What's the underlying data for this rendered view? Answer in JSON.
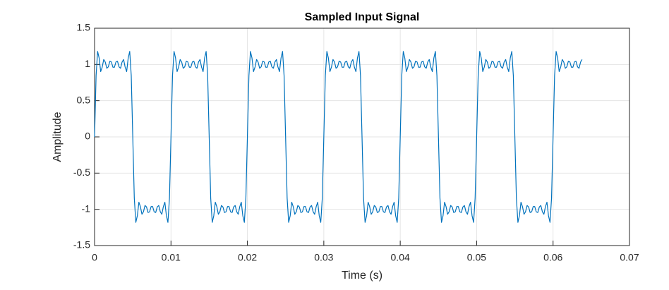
{
  "chart_data": {
    "type": "line",
    "title": "Sampled Input Signal",
    "x_label": "Time (s)",
    "y_label": "Amplitude",
    "color": "#0072bd",
    "grid": true,
    "xlim": [
      0,
      0.07
    ],
    "xticks": [
      0,
      0.01,
      0.02,
      0.03,
      0.04,
      0.05,
      0.06,
      0.07
    ],
    "ylim": [
      -1.5,
      1.5
    ],
    "yticks": [
      -1.5,
      -1,
      -0.5,
      0,
      0.5,
      1,
      1.5
    ],
    "x": [
      0,
      0.0002,
      0.0004,
      0.0006,
      0.0008,
      0.001,
      0.0012,
      0.0014,
      0.0016,
      0.0018,
      0.002,
      0.0022,
      0.0024,
      0.0026,
      0.0028,
      0.003,
      0.0032,
      0.0034,
      0.0036,
      0.0038,
      0.004,
      0.0042,
      0.0044,
      0.0046,
      0.0048,
      0.005,
      0.0052,
      0.0054,
      0.0056,
      0.0058,
      0.006,
      0.0062,
      0.0064,
      0.0066,
      0.0068,
      0.007,
      0.0072,
      0.0074,
      0.0076,
      0.0078,
      0.008,
      0.0082,
      0.0084,
      0.0086,
      0.0088,
      0.009,
      0.0092,
      0.0094,
      0.0096,
      0.0098,
      0.01,
      0.0102,
      0.0104,
      0.0106,
      0.0108,
      0.011,
      0.0112,
      0.0114,
      0.0116,
      0.0118,
      0.012,
      0.0122,
      0.0124,
      0.0126,
      0.0128,
      0.013,
      0.0132,
      0.0134,
      0.0136,
      0.0138,
      0.014,
      0.0142,
      0.0144,
      0.0146,
      0.0148,
      0.015,
      0.0152,
      0.0154,
      0.0156,
      0.0158,
      0.016,
      0.0162,
      0.0164,
      0.0166,
      0.0168,
      0.017,
      0.0172,
      0.0174,
      0.0176,
      0.0178,
      0.018,
      0.0182,
      0.0184,
      0.0186,
      0.0188,
      0.019,
      0.0192,
      0.0194,
      0.0196,
      0.0198,
      0.02,
      0.0202,
      0.0204,
      0.0206,
      0.0208,
      0.021,
      0.0212,
      0.0214,
      0.0216,
      0.0218,
      0.022,
      0.0222,
      0.0224,
      0.0226,
      0.0228,
      0.023,
      0.0232,
      0.0234,
      0.0236,
      0.0238,
      0.024,
      0.0242,
      0.0244,
      0.0246,
      0.0248,
      0.025,
      0.0252,
      0.0254,
      0.0256,
      0.0258,
      0.026,
      0.0262,
      0.0264,
      0.0266,
      0.0268,
      0.027,
      0.0272,
      0.0274,
      0.0276,
      0.0278,
      0.028,
      0.0282,
      0.0284,
      0.0286,
      0.0288,
      0.029,
      0.0292,
      0.0294,
      0.0296,
      0.0298,
      0.03,
      0.0302,
      0.0304,
      0.0306,
      0.0308,
      0.031,
      0.0312,
      0.0314,
      0.0316,
      0.0318,
      0.032,
      0.0322,
      0.0324,
      0.0326,
      0.0328,
      0.033,
      0.0332,
      0.0334,
      0.0336,
      0.0338,
      0.034,
      0.0342,
      0.0344,
      0.0346,
      0.0348,
      0.035,
      0.0352,
      0.0354,
      0.0356,
      0.0358,
      0.036,
      0.0362,
      0.0364,
      0.0366,
      0.0368,
      0.037,
      0.0372,
      0.0374,
      0.0376,
      0.0378,
      0.038,
      0.0382,
      0.0384,
      0.0386,
      0.0388,
      0.039,
      0.0392,
      0.0394,
      0.0396,
      0.0398,
      0.04,
      0.0402,
      0.0404,
      0.0406,
      0.0408,
      0.041,
      0.0412,
      0.0414,
      0.0416,
      0.0418,
      0.042,
      0.0422,
      0.0424,
      0.0426,
      0.0428,
      0.043,
      0.0432,
      0.0434,
      0.0436,
      0.0438,
      0.044,
      0.0442,
      0.0444,
      0.0446,
      0.0448,
      0.045,
      0.0452,
      0.0454,
      0.0456,
      0.0458,
      0.046,
      0.0462,
      0.0464,
      0.0466,
      0.0468,
      0.047,
      0.0472,
      0.0474,
      0.0476,
      0.0478,
      0.048,
      0.0482,
      0.0484,
      0.0486,
      0.0488,
      0.049,
      0.0492,
      0.0494,
      0.0496,
      0.0498,
      0.05,
      0.0502,
      0.0504,
      0.0506,
      0.0508,
      0.051,
      0.0512,
      0.0514,
      0.0516,
      0.0518,
      0.052,
      0.0522,
      0.0524,
      0.0526,
      0.0528,
      0.053,
      0.0532,
      0.0534,
      0.0536,
      0.0538,
      0.054,
      0.0542,
      0.0544,
      0.0546,
      0.0548,
      0.055,
      0.0552,
      0.0554,
      0.0556,
      0.0558,
      0.056,
      0.0562,
      0.0564,
      0.0566,
      0.0568,
      0.057,
      0.0572,
      0.0574,
      0.0576,
      0.0578,
      0.058,
      0.0582,
      0.0584,
      0.0586,
      0.0588,
      0.059,
      0.0592,
      0.0594,
      0.0596,
      0.0598,
      0.06,
      0.0602,
      0.0604,
      0.0606,
      0.0608,
      0.061,
      0.0612,
      0.0614,
      0.0616,
      0.0618,
      0.062,
      0.0622,
      0.0624,
      0.0626,
      0.0628,
      0.063,
      0.0632,
      0.0634,
      0.0636,
      0.0638
    ],
    "values": [
      0,
      0.847,
      1.18,
      1.088,
      0.902,
      0.964,
      1.068,
      1.033,
      0.947,
      0.967,
      1.044,
      1.035,
      0.962,
      0.962,
      1.035,
      1.044,
      0.967,
      0.947,
      1.033,
      1.068,
      0.964,
      0.902,
      1.088,
      1.18,
      0.847,
      0,
      -0.847,
      -1.18,
      -1.088,
      -0.902,
      -0.964,
      -1.068,
      -1.033,
      -0.947,
      -0.967,
      -1.044,
      -1.035,
      -0.962,
      -0.962,
      -1.035,
      -1.044,
      -0.967,
      -0.947,
      -1.033,
      -1.068,
      -0.964,
      -0.902,
      -1.088,
      -1.18,
      -0.847,
      0,
      0.847,
      1.18,
      1.088,
      0.902,
      0.964,
      1.068,
      1.033,
      0.947,
      0.967,
      1.044,
      1.035,
      0.962,
      0.962,
      1.035,
      1.044,
      0.967,
      0.947,
      1.033,
      1.068,
      0.964,
      0.902,
      1.088,
      1.18,
      0.847,
      0,
      -0.847,
      -1.18,
      -1.088,
      -0.902,
      -0.964,
      -1.068,
      -1.033,
      -0.947,
      -0.967,
      -1.044,
      -1.035,
      -0.962,
      -0.962,
      -1.035,
      -1.044,
      -0.967,
      -0.947,
      -1.033,
      -1.068,
      -0.964,
      -0.902,
      -1.088,
      -1.18,
      -0.847,
      0,
      0.847,
      1.18,
      1.088,
      0.902,
      0.964,
      1.068,
      1.033,
      0.947,
      0.967,
      1.044,
      1.035,
      0.962,
      0.962,
      1.035,
      1.044,
      0.967,
      0.947,
      1.033,
      1.068,
      0.964,
      0.902,
      1.088,
      1.18,
      0.847,
      0,
      -0.847,
      -1.18,
      -1.088,
      -0.902,
      -0.964,
      -1.068,
      -1.033,
      -0.947,
      -0.967,
      -1.044,
      -1.035,
      -0.962,
      -0.962,
      -1.035,
      -1.044,
      -0.967,
      -0.947,
      -1.033,
      -1.068,
      -0.964,
      -0.902,
      -1.088,
      -1.18,
      -0.847,
      0,
      0.847,
      1.18,
      1.088,
      0.902,
      0.964,
      1.068,
      1.033,
      0.947,
      0.967,
      1.044,
      1.035,
      0.962,
      0.962,
      1.035,
      1.044,
      0.967,
      0.947,
      1.033,
      1.068,
      0.964,
      0.902,
      1.088,
      1.18,
      0.847,
      0,
      -0.847,
      -1.18,
      -1.088,
      -0.902,
      -0.964,
      -1.068,
      -1.033,
      -0.947,
      -0.967,
      -1.044,
      -1.035,
      -0.962,
      -0.962,
      -1.035,
      -1.044,
      -0.967,
      -0.947,
      -1.033,
      -1.068,
      -0.964,
      -0.902,
      -1.088,
      -1.18,
      -0.847,
      0,
      0.847,
      1.18,
      1.088,
      0.902,
      0.964,
      1.068,
      1.033,
      0.947,
      0.967,
      1.044,
      1.035,
      0.962,
      0.962,
      1.035,
      1.044,
      0.967,
      0.947,
      1.033,
      1.068,
      0.964,
      0.902,
      1.088,
      1.18,
      0.847,
      0,
      -0.847,
      -1.18,
      -1.088,
      -0.902,
      -0.964,
      -1.068,
      -1.033,
      -0.947,
      -0.967,
      -1.044,
      -1.035,
      -0.962,
      -0.962,
      -1.035,
      -1.044,
      -0.967,
      -0.947,
      -1.033,
      -1.068,
      -0.964,
      -0.902,
      -1.088,
      -1.18,
      -0.847,
      0,
      0.847,
      1.18,
      1.088,
      0.902,
      0.964,
      1.068,
      1.033,
      0.947,
      0.967,
      1.044,
      1.035,
      0.962,
      0.962,
      1.035,
      1.044,
      0.967,
      0.947,
      1.033,
      1.068,
      0.964,
      0.902,
      1.088,
      1.18,
      0.847,
      0,
      -0.847,
      -1.18,
      -1.088,
      -0.902,
      -0.964,
      -1.068,
      -1.033,
      -0.947,
      -0.967,
      -1.044,
      -1.035,
      -0.962,
      -0.962,
      -1.035,
      -1.044,
      -0.967,
      -0.947,
      -1.033,
      -1.068,
      -0.964,
      -0.902,
      -1.088,
      -1.18,
      -0.847,
      0,
      0.847,
      1.18,
      1.088,
      0.902,
      0.964,
      1.068,
      1.033,
      0.947,
      0.967,
      1.044,
      1.035,
      0.962,
      0.962,
      1.035,
      1.044,
      0.967,
      0.947,
      1.033,
      1.068
    ]
  }
}
